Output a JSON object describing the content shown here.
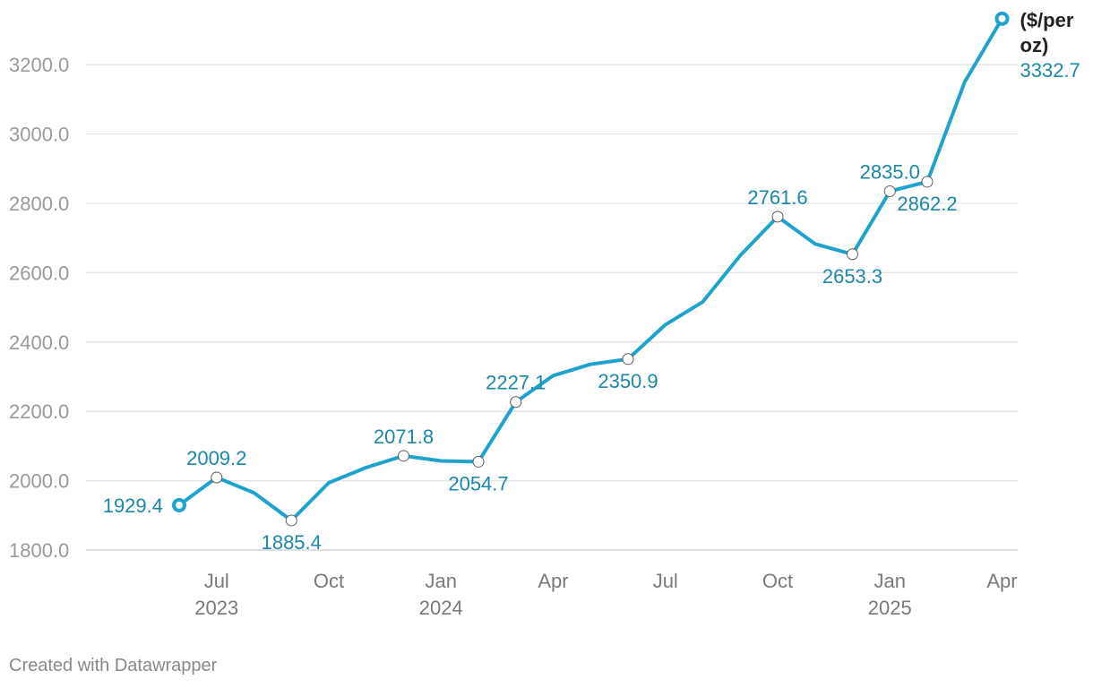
{
  "chart_data": {
    "type": "line",
    "title": "",
    "xlabel": "",
    "ylabel": "",
    "series": [
      {
        "name": "($/per oz)",
        "color": "#1fa2cc",
        "points": [
          {
            "x": "2023-06",
            "y": 1929.4
          },
          {
            "x": "2023-07",
            "y": 2009.2
          },
          {
            "x": "2023-08",
            "y": 1965.0
          },
          {
            "x": "2023-09",
            "y": 1885.4
          },
          {
            "x": "2023-10",
            "y": 1994.0
          },
          {
            "x": "2023-11",
            "y": 2038.0
          },
          {
            "x": "2023-12",
            "y": 2071.8
          },
          {
            "x": "2024-01",
            "y": 2057.0
          },
          {
            "x": "2024-02",
            "y": 2054.7
          },
          {
            "x": "2024-03",
            "y": 2227.1
          },
          {
            "x": "2024-04",
            "y": 2303.0
          },
          {
            "x": "2024-05",
            "y": 2336.0
          },
          {
            "x": "2024-06",
            "y": 2350.9
          },
          {
            "x": "2024-07",
            "y": 2450.0
          },
          {
            "x": "2024-08",
            "y": 2516.0
          },
          {
            "x": "2024-09",
            "y": 2650.0
          },
          {
            "x": "2024-10",
            "y": 2761.6
          },
          {
            "x": "2024-11",
            "y": 2683.0
          },
          {
            "x": "2024-12",
            "y": 2653.3
          },
          {
            "x": "2025-01",
            "y": 2835.0
          },
          {
            "x": "2025-02",
            "y": 2862.2
          },
          {
            "x": "2025-03",
            "y": 3150.0
          },
          {
            "x": "2025-04",
            "y": 3332.7
          }
        ]
      }
    ],
    "ylim": [
      1800,
      3300
    ],
    "yticks": [
      {
        "value": 1800,
        "label": "1800.0"
      },
      {
        "value": 2000,
        "label": "2000.0"
      },
      {
        "value": 2200,
        "label": "2200.0"
      },
      {
        "value": 2400,
        "label": "2400.0"
      },
      {
        "value": 2600,
        "label": "2600.0"
      },
      {
        "value": 2800,
        "label": "2800.0"
      },
      {
        "value": 3000,
        "label": "3000.0"
      },
      {
        "value": 3200,
        "label": "3200.0"
      }
    ],
    "xticks": [
      {
        "x": "2023-07",
        "label": "Jul",
        "year": "2023"
      },
      {
        "x": "2023-10",
        "label": "Oct",
        "year": ""
      },
      {
        "x": "2024-01",
        "label": "Jan",
        "year": "2024"
      },
      {
        "x": "2024-04",
        "label": "Apr",
        "year": ""
      },
      {
        "x": "2024-07",
        "label": "Jul",
        "year": ""
      },
      {
        "x": "2024-10",
        "label": "Oct",
        "year": ""
      },
      {
        "x": "2025-01",
        "label": "Jan",
        "year": "2025"
      },
      {
        "x": "2025-04",
        "label": "Apr",
        "year": ""
      }
    ],
    "data_labels": [
      {
        "x": "2023-06",
        "text": "1929.4",
        "pos": "left"
      },
      {
        "x": "2023-07",
        "text": "2009.2",
        "pos": "above"
      },
      {
        "x": "2023-09",
        "text": "1885.4",
        "pos": "below"
      },
      {
        "x": "2023-12",
        "text": "2071.8",
        "pos": "above"
      },
      {
        "x": "2024-02",
        "text": "2054.7",
        "pos": "below"
      },
      {
        "x": "2024-03",
        "text": "2227.1",
        "pos": "above"
      },
      {
        "x": "2024-06",
        "text": "2350.9",
        "pos": "below"
      },
      {
        "x": "2024-10",
        "text": "2761.6",
        "pos": "above"
      },
      {
        "x": "2024-12",
        "text": "2653.3",
        "pos": "below"
      },
      {
        "x": "2025-01",
        "text": "2835.0",
        "pos": "above"
      },
      {
        "x": "2025-02",
        "text": "2862.2",
        "pos": "below"
      }
    ],
    "end_label": {
      "name_lines": [
        "($/per",
        "oz)"
      ],
      "value": "3332.7"
    },
    "grid": true,
    "legend": "none"
  },
  "footer": {
    "credit": "Created with Datawrapper"
  }
}
